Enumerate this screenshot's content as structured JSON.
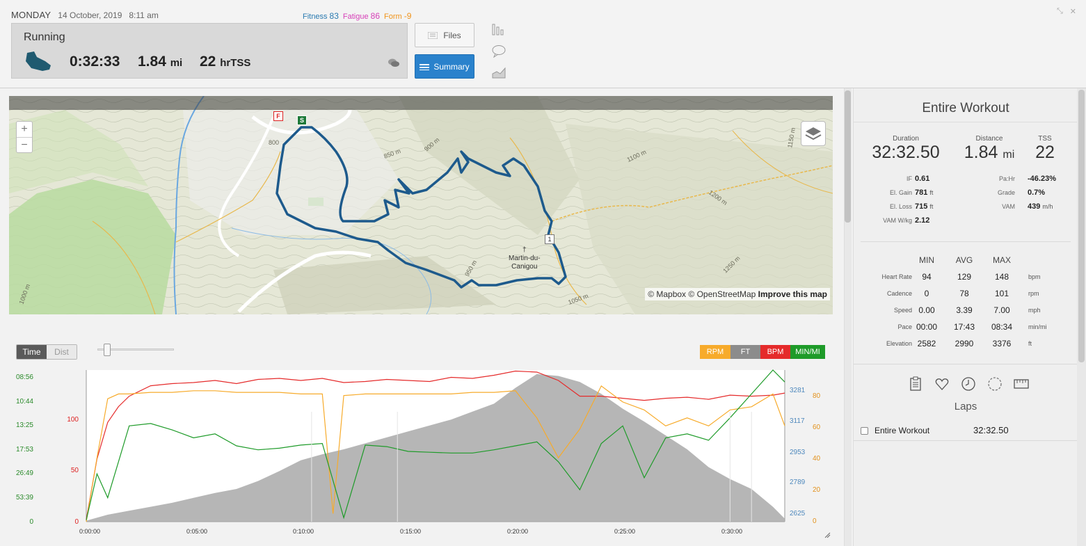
{
  "header": {
    "day": "MONDAY",
    "date": "14 October, 2019",
    "time": "8:11 am",
    "fitness_label": "Fitness",
    "fitness_value": "83",
    "fatigue_label": "Fatigue",
    "fatigue_value": "86",
    "form_label": "Form",
    "form_value": "-9"
  },
  "workout": {
    "sport": "Running",
    "duration": "0:32:33",
    "distance": "1.84",
    "distance_unit": "mi",
    "tss": "22",
    "tss_unit": "hrTSS"
  },
  "buttons": {
    "files": "Files",
    "summary": "Summary"
  },
  "map": {
    "place_line1": "Martin-du-",
    "place_line2": "Canigou",
    "zoom_in": "+",
    "zoom_out": "−",
    "start_marker": "S",
    "finish_marker": "F",
    "km_marker": "1",
    "attrib_mapbox": "© Mapbox",
    "attrib_osm": "© OpenStreetMap",
    "attrib_improve": "Improve this map",
    "contour_labels": [
      "800",
      "850 m",
      "900 m",
      "950 m",
      "1000 m",
      "1050 m",
      "1100 m",
      "1150 m",
      "1200 m",
      "1250 m"
    ]
  },
  "chart_controls": {
    "time": "Time",
    "dist": "Dist",
    "channels": [
      "RPM",
      "FT",
      "BPM",
      "MIN/MI"
    ],
    "channel_colors": [
      "#f7ab2b",
      "#8c8c8c",
      "#e52b2b",
      "#1e9b29"
    ]
  },
  "chart_data": {
    "type": "line",
    "x_label_ticks": [
      "0:00:00",
      "0:05:00",
      "0:10:00",
      "0:15:00",
      "0:20:00",
      "0:25:00",
      "0:30:00"
    ],
    "xlim_minutes": [
      0,
      32.55
    ],
    "axes": {
      "pace_ticks": [
        "08:56",
        "10:44",
        "13:25",
        "17:53",
        "26:49",
        "53:39",
        "0"
      ],
      "bpm_ticks": [
        "100",
        "50",
        "0"
      ],
      "elevation_ticks": [
        "3281",
        "3117",
        "2953",
        "2789",
        "2625"
      ],
      "rpm_ticks": [
        "80",
        "60",
        "40",
        "20",
        "0"
      ]
    },
    "elevation_ft_ylim": [
      2625,
      3390
    ],
    "series": [
      {
        "name": "FT",
        "color": "#8c8c8c",
        "x": [
          0,
          1,
          2,
          3,
          4,
          5,
          6,
          7,
          8,
          9,
          10,
          11,
          12,
          13,
          14,
          15,
          16,
          17,
          18,
          19,
          20,
          21,
          22,
          23,
          24,
          25,
          26,
          27,
          28,
          29,
          30,
          31,
          32,
          32.55
        ],
        "values": [
          2630,
          2660,
          2680,
          2700,
          2720,
          2745,
          2770,
          2790,
          2830,
          2880,
          2935,
          2965,
          2990,
          3020,
          3050,
          3080,
          3110,
          3140,
          3180,
          3220,
          3300,
          3370,
          3360,
          3330,
          3270,
          3195,
          3130,
          3060,
          2990,
          2900,
          2840,
          2790,
          2700,
          2640
        ]
      },
      {
        "name": "BPM",
        "color": "#e52b2b",
        "x": [
          0,
          0.5,
          1,
          1.5,
          2,
          3,
          4,
          5,
          6,
          7,
          8,
          9,
          10,
          11,
          12,
          13,
          14,
          15,
          16,
          17,
          18,
          19,
          20,
          21,
          22,
          23,
          24,
          25,
          26,
          27,
          28,
          29,
          30,
          31,
          32,
          32.55
        ],
        "values": [
          2,
          60,
          95,
          110,
          120,
          130,
          132,
          133,
          135,
          132,
          136,
          137,
          135,
          137,
          133,
          134,
          136,
          135,
          134,
          138,
          137,
          140,
          144,
          143,
          135,
          120,
          120,
          118,
          116,
          118,
          119,
          117,
          121,
          120,
          121,
          123
        ]
      },
      {
        "name": "RPM",
        "color": "#f7ab2b",
        "x": [
          0,
          0.5,
          1,
          1.5,
          2,
          3,
          4,
          5,
          6,
          7,
          8,
          9,
          10,
          11,
          11.5,
          12,
          13,
          14,
          15,
          16,
          17,
          18,
          19,
          20,
          21,
          22,
          23,
          24,
          25,
          26,
          27,
          28,
          29,
          30,
          31,
          32,
          32.55
        ],
        "values": [
          0,
          40,
          77,
          80,
          80,
          81,
          81,
          82,
          82,
          81,
          81,
          81,
          80,
          80,
          5,
          79,
          80,
          80,
          80,
          80,
          80,
          81,
          81,
          82,
          65,
          40,
          58,
          85,
          75,
          70,
          60,
          65,
          60,
          70,
          72,
          80,
          60
        ]
      },
      {
        "name": "MIN/MI",
        "color": "#1e9b29",
        "x": [
          0,
          0.5,
          1,
          1.5,
          2,
          3,
          4,
          5,
          6,
          7,
          8,
          9,
          10,
          11,
          12,
          13,
          14,
          15,
          16,
          17,
          18,
          19,
          20,
          21,
          22,
          23,
          24,
          25,
          26,
          27,
          28,
          29,
          30,
          31,
          32,
          32.55
        ],
        "values": [
          2,
          60,
          30,
          75,
          120,
          123,
          115,
          105,
          110,
          95,
          90,
          92,
          96,
          98,
          5,
          96,
          94,
          88,
          87,
          86,
          86,
          90,
          95,
          100,
          75,
          40,
          98,
          120,
          55,
          105,
          110,
          102,
          130,
          160,
          190,
          175
        ]
      }
    ]
  },
  "panel": {
    "title": "Entire Workout",
    "duration_label": "Duration",
    "duration": "32:32.50",
    "distance_label": "Distance",
    "distance": "1.84",
    "distance_unit": "mi",
    "tss_label": "TSS",
    "tss": "22",
    "left_stats": [
      {
        "k": "IF",
        "v": "0.61",
        "u": ""
      },
      {
        "k": "El. Gain",
        "v": "781",
        "u": "ft"
      },
      {
        "k": "El. Loss",
        "v": "715",
        "u": "ft"
      },
      {
        "k": "VAM W/kg",
        "v": "2.12",
        "u": ""
      }
    ],
    "right_stats": [
      {
        "k": "Pa:Hr",
        "v": "-46.23%",
        "u": ""
      },
      {
        "k": "Grade",
        "v": "0.7%",
        "u": ""
      },
      {
        "k": "VAM",
        "v": "439",
        "u": "m/h"
      }
    ],
    "table_headers": [
      "MIN",
      "AVG",
      "MAX"
    ],
    "table_rows": [
      {
        "label": "Heart Rate",
        "min": "94",
        "avg": "129",
        "max": "148",
        "unit": "bpm"
      },
      {
        "label": "Cadence",
        "min": "0",
        "avg": "78",
        "max": "101",
        "unit": "rpm"
      },
      {
        "label": "Speed",
        "min": "0.00",
        "avg": "3.39",
        "max": "7.00",
        "unit": "mph"
      },
      {
        "label": "Pace",
        "min": "00:00",
        "avg": "17:43",
        "max": "08:34",
        "unit": "min/mi"
      },
      {
        "label": "Elevation",
        "min": "2582",
        "avg": "2990",
        "max": "3376",
        "unit": "ft"
      }
    ],
    "laps_label": "Laps",
    "lap_name": "Entire Workout",
    "lap_time": "32:32.50"
  }
}
